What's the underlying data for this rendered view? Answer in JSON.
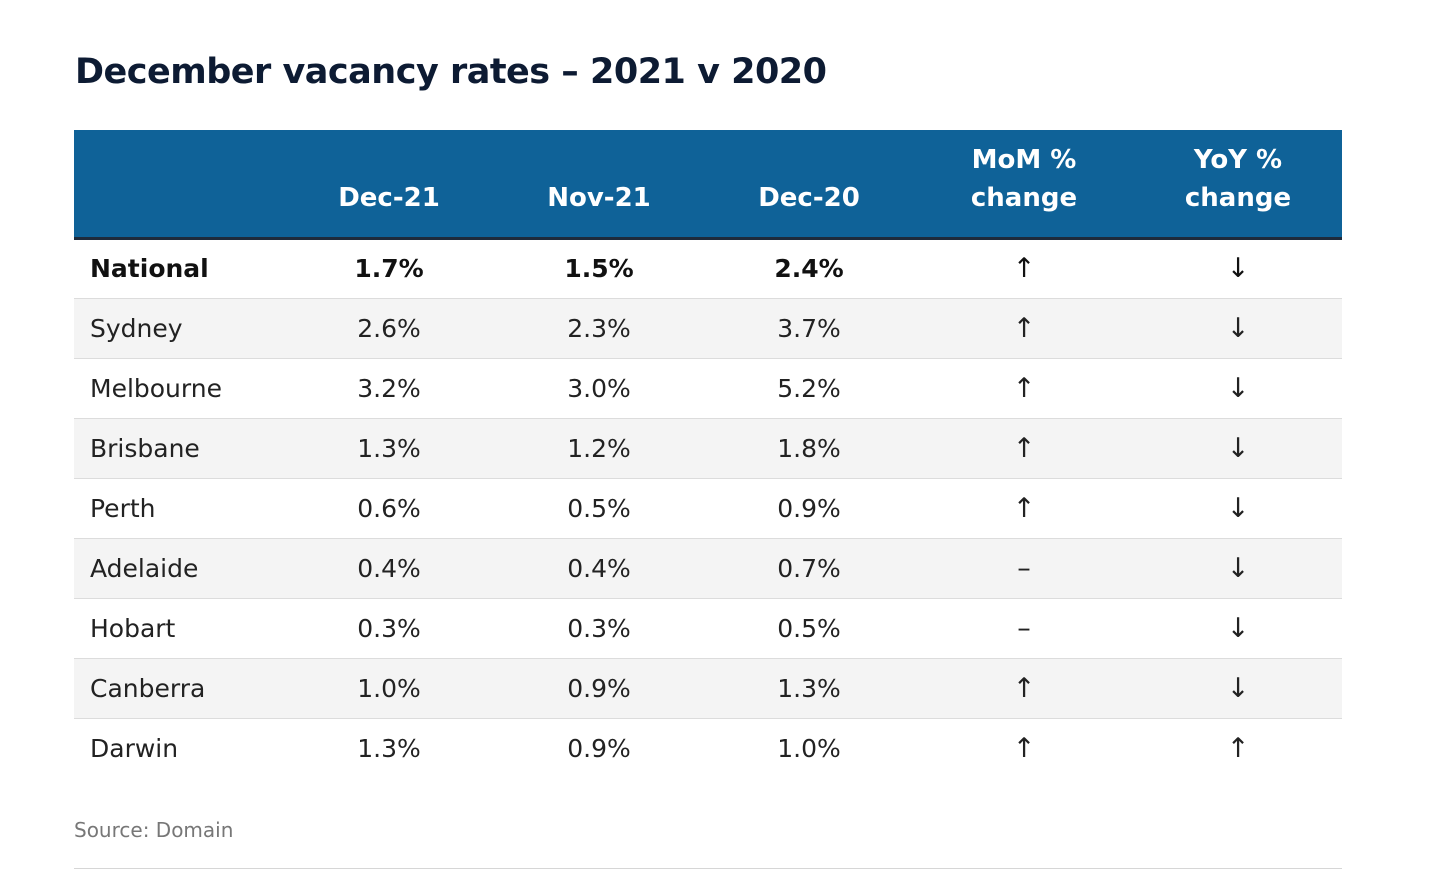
{
  "chart_data": {
    "type": "table",
    "title": "December vacancy rates – 2021 v 2020",
    "columns": [
      "",
      "Dec-21",
      "Nov-21",
      "Dec-20",
      "MoM % change",
      "YoY % change"
    ],
    "column_labels": [
      "",
      "Dec-21",
      "Nov-21",
      "Dec-20",
      "MoM %\nchange",
      "YoY %\nchange"
    ],
    "rows": [
      {
        "region": "National",
        "dec21": "1.7%",
        "nov21": "1.5%",
        "dec20": "2.4%",
        "mom": "↑",
        "yoy": "↓"
      },
      {
        "region": "Sydney",
        "dec21": "2.6%",
        "nov21": "2.3%",
        "dec20": "3.7%",
        "mom": "↑",
        "yoy": "↓"
      },
      {
        "region": "Melbourne",
        "dec21": "3.2%",
        "nov21": "3.0%",
        "dec20": "5.2%",
        "mom": "↑",
        "yoy": "↓"
      },
      {
        "region": "Brisbane",
        "dec21": "1.3%",
        "nov21": "1.2%",
        "dec20": "1.8%",
        "mom": "↑",
        "yoy": "↓"
      },
      {
        "region": "Perth",
        "dec21": "0.6%",
        "nov21": "0.5%",
        "dec20": "0.9%",
        "mom": "↑",
        "yoy": "↓"
      },
      {
        "region": "Adelaide",
        "dec21": "0.4%",
        "nov21": "0.4%",
        "dec20": "0.7%",
        "mom": "–",
        "yoy": "↓"
      },
      {
        "region": "Hobart",
        "dec21": "0.3%",
        "nov21": "0.3%",
        "dec20": "0.5%",
        "mom": "–",
        "yoy": "↓"
      },
      {
        "region": "Canberra",
        "dec21": "1.0%",
        "nov21": "0.9%",
        "dec20": "1.3%",
        "mom": "↑",
        "yoy": "↓"
      },
      {
        "region": "Darwin",
        "dec21": "1.3%",
        "nov21": "0.9%",
        "dec20": "1.0%",
        "mom": "↑",
        "yoy": "↑"
      }
    ],
    "source": "Source: Domain"
  },
  "colors": {
    "header_bg": "#0f6298",
    "header_text": "#ffffff",
    "title_text": "#0d1b33",
    "stripe_bg": "#f4f4f4",
    "source_text": "#777777"
  }
}
